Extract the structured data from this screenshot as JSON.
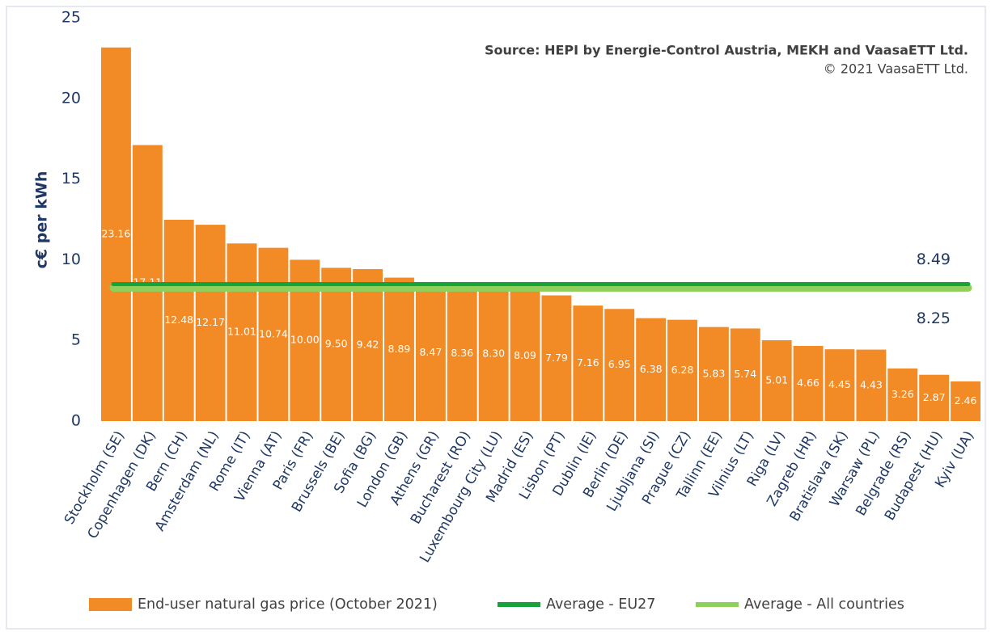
{
  "chart_data": {
    "type": "bar",
    "source": "Source: HEPI by Energie-Control Austria, MEKH and VaasaETT Ltd.",
    "copyright": "© 2021 VaasaETT Ltd.",
    "y_label": "c€ per kWh",
    "categories": [
      "Stockholm (SE)",
      "Copenhagen (DK)",
      "Bern (CH)",
      "Amsterdam (NL)",
      "Rome (IT)",
      "Vienna (AT)",
      "Paris (FR)",
      "Brussels (BE)",
      "Sofia (BG)",
      "London (GB)",
      "Athens (GR)",
      "Bucharest (RO)",
      "Luxembourg City (LU)",
      "Madrid (ES)",
      "Lisbon (PT)",
      "Dublin (IE)",
      "Berlin (DE)",
      "Ljubljana (SI)",
      "Prague (CZ)",
      "Tallinn (EE)",
      "Vilnius (LT)",
      "Riga (LV)",
      "Zagreb (HR)",
      "Bratislava (SK)",
      "Warsaw (PL)",
      "Belgrade (RS)",
      "Budapest (HU)",
      "Kyiv (UA)"
    ],
    "series": [
      {
        "name": "End-user natural gas price (October 2021)",
        "color": "#f28a25",
        "values": [
          23.16,
          17.11,
          12.48,
          12.17,
          11.01,
          10.74,
          10.0,
          9.5,
          9.42,
          8.89,
          8.47,
          8.36,
          8.3,
          8.09,
          7.79,
          7.16,
          6.95,
          6.38,
          6.28,
          5.83,
          5.74,
          5.01,
          4.66,
          4.45,
          4.43,
          3.26,
          2.87,
          2.46
        ],
        "value_labels": [
          "23.16",
          "17.11",
          "12.48",
          "12.17",
          "11.01",
          "10.74",
          "10.00",
          "9.50",
          "9.42",
          "8.89",
          "8.47",
          "8.36",
          "8.30",
          "8.09",
          "7.79",
          "7.16",
          "6.95",
          "6.38",
          "6.28",
          "5.83",
          "5.74",
          "5.01",
          "4.66",
          "4.45",
          "4.43",
          "3.26",
          "2.87",
          "2.46"
        ]
      }
    ],
    "reference_lines": [
      {
        "name": "Average - EU27",
        "color": "#16a339",
        "value": 8.49
      },
      {
        "name": "Average - All countries",
        "color": "#8fd05c",
        "value": 8.25
      }
    ],
    "ylim": [
      0,
      25
    ],
    "yticks": [
      0,
      5,
      10,
      15,
      20,
      25
    ],
    "grid": false
  }
}
